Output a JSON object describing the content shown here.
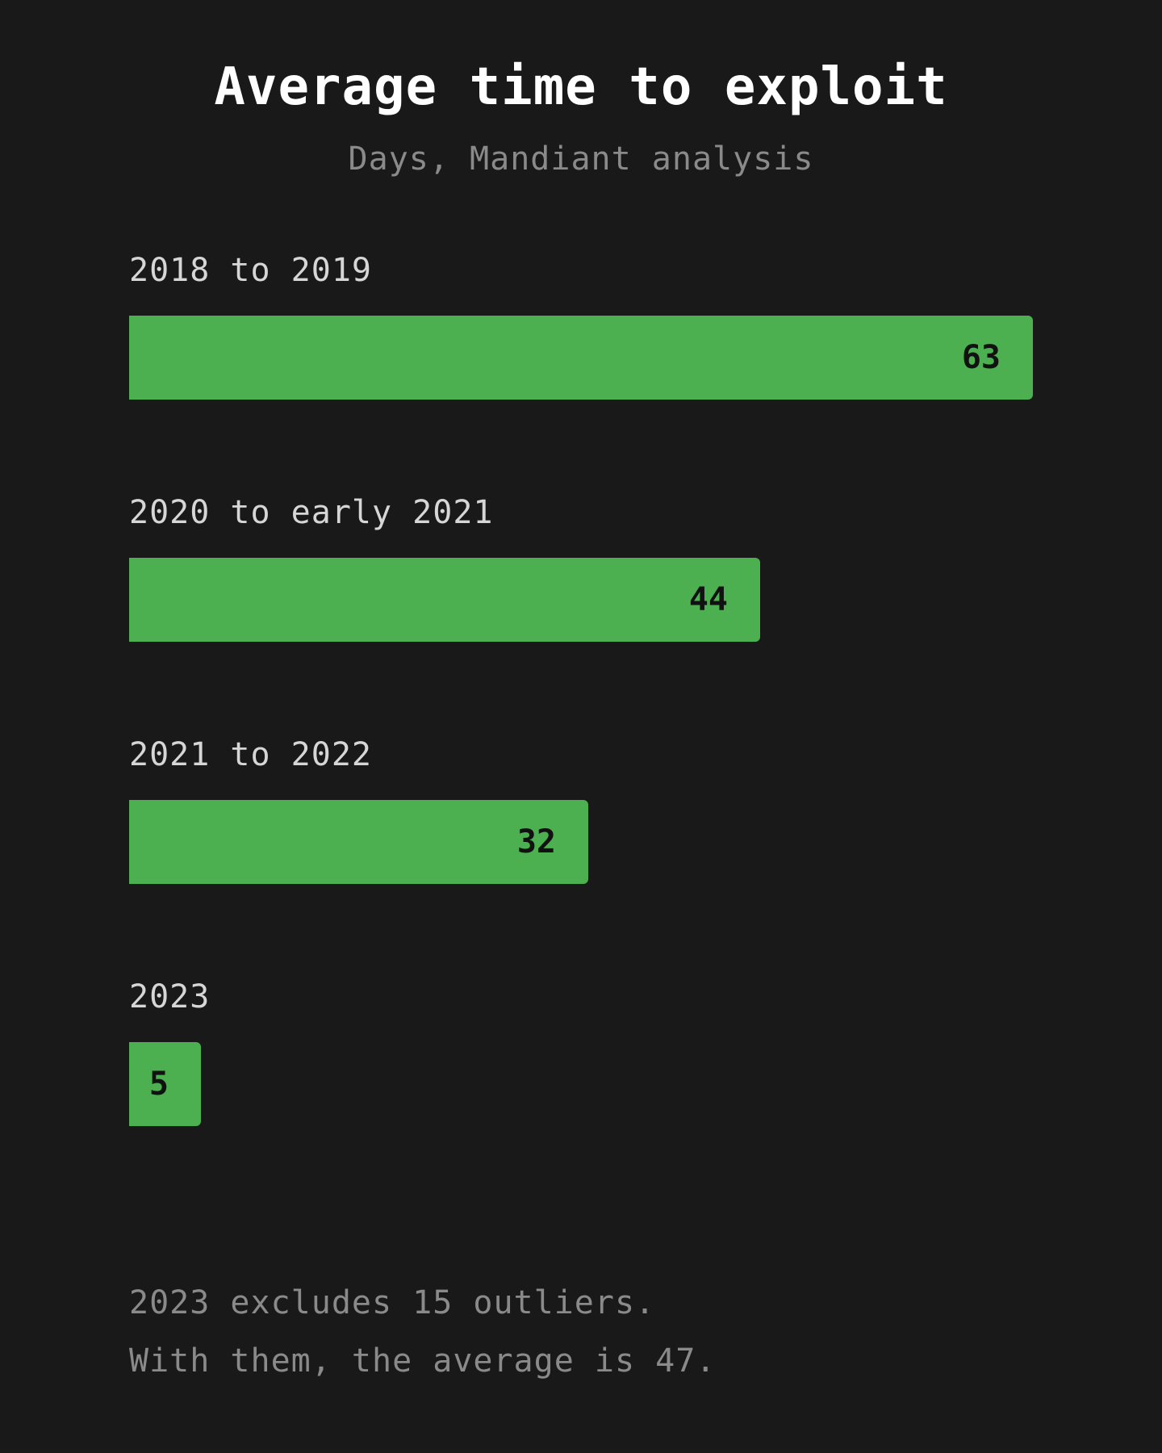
{
  "chart_data": {
    "type": "bar",
    "orientation": "horizontal",
    "title": "Average time to exploit",
    "subtitle": "Days, Mandiant analysis",
    "categories": [
      "2018 to 2019",
      "2020 to early 2021",
      "2021 to 2022",
      "2023"
    ],
    "values": [
      63,
      44,
      32,
      5
    ],
    "value_labels": [
      "63",
      "44",
      "32",
      "5"
    ],
    "xlim": [
      0,
      63
    ],
    "grid": false,
    "legend": "none",
    "bar_color": "#4caf50"
  },
  "footnote": {
    "line1": "2023 excludes 15 outliers.",
    "line2": "With them, the average is 47."
  }
}
